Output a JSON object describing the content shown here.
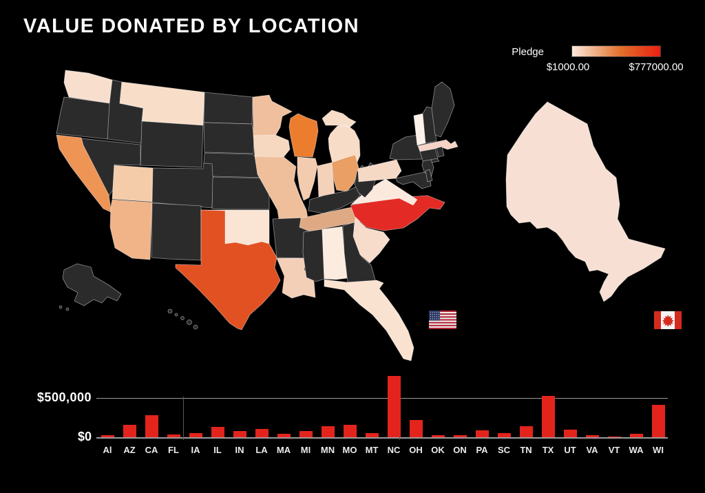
{
  "title": "VALUE DONATED BY LOCATION",
  "legend": {
    "label": "Pledge",
    "min_label": "$1000.00",
    "max_label": "$777000.00",
    "gradient_from": "#fbe9dc",
    "gradient_mid": "#e1702c",
    "gradient_to": "#e82012"
  },
  "map": {
    "background": "#000000",
    "no_data_color": "#2b2b2b",
    "border_color": "#9b9b9b",
    "fills": {
      "AL": "#fcecdf",
      "AZ": "#f1b488",
      "CA": "#ee9455",
      "FL": "#fae2d1",
      "IA": "#f6d8c0",
      "IL": "#f3cbae",
      "IN": "#f4d2ba",
      "LA": "#f4cfb8",
      "MA": "#f5d3c5",
      "MI": "#f7dcc8",
      "MN": "#f0c09e",
      "MO": "#efbf9c",
      "MT": "#f8dec9",
      "NC": "#e32a24",
      "OH": "#ea9f64",
      "OK": "#fae5d5",
      "PA": "#f6d9c5",
      "SC": "#f8dccb",
      "TN": "#dfa983",
      "TX": "#e25122",
      "UT": "#f5cca9",
      "VA": "#fbe9de",
      "VT": "#fdf2e9",
      "WA": "#f8dfcd",
      "WI": "#ed7d2e",
      "ON": "#f7e0d3"
    }
  },
  "flags": {
    "us": {
      "name": "united-states",
      "stripe_red": "#b22234",
      "canton_blue": "#2c3a66",
      "white": "#f2f2f2"
    },
    "canada": {
      "name": "canada",
      "red": "#d52b1e",
      "white": "#f5f5f5"
    }
  },
  "chart_data": [
    {
      "type": "bar",
      "title": "",
      "xlabel": "",
      "ylabel": "Pledge",
      "categories": [
        "Al",
        "AZ",
        "CA",
        "FL",
        "IA",
        "IL",
        "IN",
        "LA",
        "MA",
        "MI",
        "MN",
        "MO",
        "MT",
        "NC",
        "OH",
        "OK",
        "ON",
        "PA",
        "SC",
        "TN",
        "TX",
        "UT",
        "VA",
        "VT",
        "WA",
        "WI"
      ],
      "values": [
        25000,
        155000,
        280000,
        35000,
        55000,
        135000,
        80000,
        105000,
        40000,
        75000,
        140000,
        155000,
        50000,
        777000,
        215000,
        30000,
        25000,
        85000,
        50000,
        140000,
        530000,
        95000,
        25000,
        2000,
        45000,
        415000
      ],
      "ylim": [
        0,
        800000
      ],
      "yticks": {
        "zero": "$0",
        "grid": "$500,000"
      },
      "gridline_value": 500000,
      "bar_color": "#e3241d",
      "grid": "on",
      "legend_position": "none"
    },
    {
      "type": "heatmap",
      "title": "Pledge by location (choropleth)",
      "regions": [
        "AL",
        "AZ",
        "CA",
        "FL",
        "IA",
        "IL",
        "IN",
        "LA",
        "MA",
        "MI",
        "MN",
        "MO",
        "MT",
        "NC",
        "OH",
        "OK",
        "ON",
        "PA",
        "SC",
        "TN",
        "TX",
        "UT",
        "VA",
        "VT",
        "WA",
        "WI"
      ],
      "values": [
        25000,
        155000,
        280000,
        35000,
        55000,
        135000,
        80000,
        105000,
        40000,
        75000,
        140000,
        155000,
        50000,
        777000,
        215000,
        30000,
        25000,
        85000,
        50000,
        140000,
        530000,
        95000,
        25000,
        2000,
        45000,
        415000
      ],
      "color_scale": {
        "min": 1000,
        "max": 777000,
        "from": "#fbe9dc",
        "to": "#e82012"
      }
    }
  ]
}
